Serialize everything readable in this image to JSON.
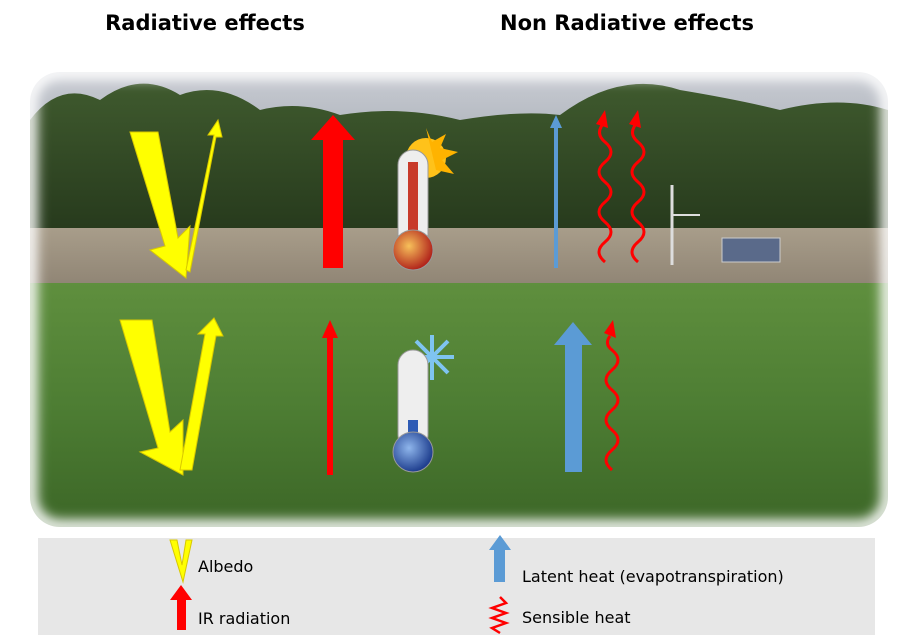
{
  "headings": {
    "radiative": "Radiative effects",
    "non_radiative": "Non Radiative effects"
  },
  "legend": {
    "items": [
      {
        "label": "Albedo"
      },
      {
        "label": "IR radiation"
      },
      {
        "label": "Latent heat (evapotranspiration)"
      },
      {
        "label": "Sensible heat"
      }
    ]
  }
}
